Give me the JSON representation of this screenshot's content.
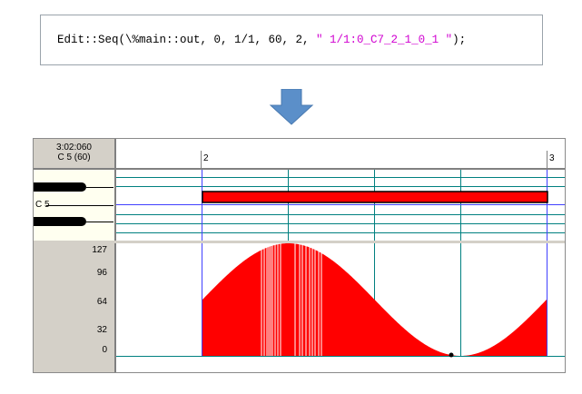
{
  "code": {
    "prefix": "Edit::Seq(\\%main::out, 0, 1/1, 60, 2, ",
    "string": "\" 1/1:0_C7_2_1_0_1 \"",
    "suffix": ");"
  },
  "editor": {
    "position_time": "3:02:060",
    "position_note": "C 5 (60)",
    "ruler_marks": [
      "2",
      "3"
    ],
    "piano_note_label": "C 5",
    "velocity_labels": [
      "127",
      "96",
      "64",
      "32",
      "0"
    ]
  },
  "colors": {
    "note_fill": "#ff0000",
    "velocity_fill": "#ff0000",
    "grid_cyan": "#008080",
    "grid_blue": "#4040ff",
    "arrow_fill": "#5b8fc9"
  },
  "icons": {
    "down_arrow": "down-arrow-icon"
  }
}
